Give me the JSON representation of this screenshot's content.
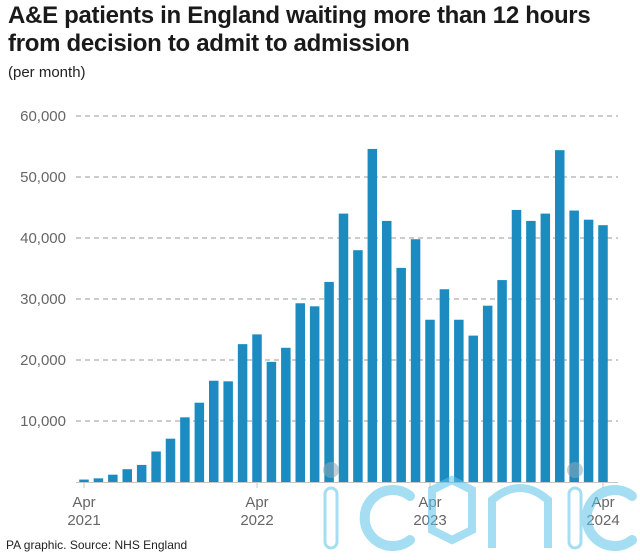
{
  "title": "A&E patients in England waiting more than 12 hours from decision to admit to admission",
  "subtitle": "(per month)",
  "footer": "PA graphic. Source: NHS England",
  "watermark": "iconic",
  "colors": {
    "bar": "#1b8bc0",
    "grid": "#9a9a9a",
    "axis": "#c6c6c6",
    "tick_text": "#666666",
    "watermark": "#5cc3ea"
  },
  "chart_data": {
    "type": "bar",
    "title": "A&E patients in England waiting more than 12 hours from decision to admit to admission",
    "ylabel": "(per month)",
    "ylim": [
      0,
      60000
    ],
    "yticks": [
      10000,
      20000,
      30000,
      40000,
      50000,
      60000
    ],
    "ytick_labels": [
      "10,000",
      "20,000",
      "30,000",
      "40,000",
      "50,000",
      "60,000"
    ],
    "grid": true,
    "x_tick_labels": [
      {
        "month": "Apr",
        "year": "2021",
        "index": 0
      },
      {
        "month": "Apr",
        "year": "2022",
        "index": 12
      },
      {
        "month": "Apr",
        "year": "2023",
        "index": 24
      },
      {
        "month": "Apr",
        "year": "2024",
        "index": 36
      }
    ],
    "categories": [
      "2021-04",
      "2021-05",
      "2021-06",
      "2021-07",
      "2021-08",
      "2021-09",
      "2021-10",
      "2021-11",
      "2021-12",
      "2022-01",
      "2022-02",
      "2022-03",
      "2022-04",
      "2022-05",
      "2022-06",
      "2022-07",
      "2022-08",
      "2022-09",
      "2022-10",
      "2022-11",
      "2022-12",
      "2023-01",
      "2023-02",
      "2023-03",
      "2023-04",
      "2023-05",
      "2023-06",
      "2023-07",
      "2023-08",
      "2023-09",
      "2023-10",
      "2023-11",
      "2023-12",
      "2024-01",
      "2024-02",
      "2024-03",
      "2024-04"
    ],
    "values": [
      400,
      600,
      1200,
      2100,
      2800,
      5000,
      7100,
      10600,
      13000,
      16600,
      16500,
      22600,
      24200,
      19700,
      22000,
      29300,
      28800,
      32800,
      44000,
      38000,
      54600,
      42800,
      35100,
      39800,
      26600,
      31600,
      26600,
      24000,
      28900,
      33100,
      44600,
      42800,
      44000,
      54400,
      44500,
      43000,
      42100
    ]
  }
}
